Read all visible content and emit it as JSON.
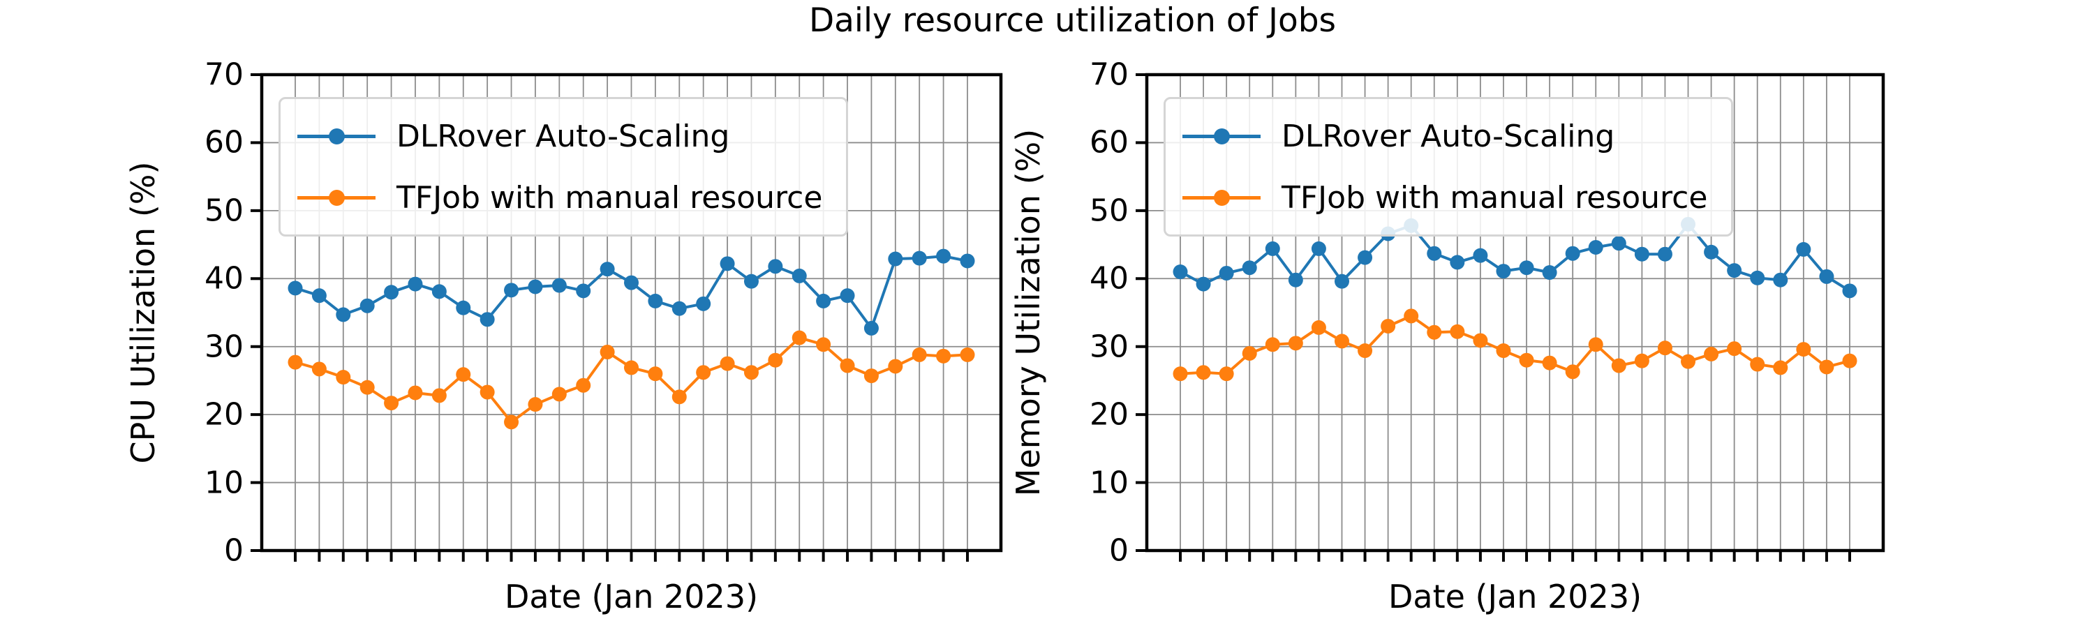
{
  "figure_title": "Daily resource utilization of Jobs",
  "colors": {
    "auto_scaling": "#1f77b4",
    "manual": "#ff7f0e",
    "grid": "#8c8c8c",
    "spine": "#000000",
    "legend_border": "#d5d5d5"
  },
  "chart_data": [
    {
      "id": "cpu",
      "type": "line",
      "title": "",
      "xlabel": "Date (Jan 2023)",
      "ylabel": "CPU Utilization (%)",
      "ylim": [
        0,
        70
      ],
      "y_ticks": [
        "0",
        "10",
        "20",
        "30",
        "40",
        "50",
        "60",
        "70"
      ],
      "grid": "on",
      "legend_position": "upper left",
      "x_unit": "day",
      "x": [
        1,
        2,
        3,
        4,
        5,
        6,
        7,
        8,
        9,
        10,
        11,
        12,
        13,
        14,
        15,
        16,
        17,
        18,
        19,
        20,
        21,
        22,
        23,
        24,
        25,
        26,
        27,
        28,
        29
      ],
      "series": [
        {
          "name": "DLRover Auto-Scaling",
          "color": "#1f77b4",
          "values": [
            38.6,
            37.5,
            34.7,
            36.0,
            38.0,
            39.2,
            38.1,
            35.7,
            34.0,
            38.3,
            38.8,
            39.0,
            38.2,
            41.4,
            39.4,
            36.7,
            35.6,
            36.3,
            42.2,
            39.6,
            41.8,
            40.4,
            36.7,
            37.5,
            32.7,
            42.9,
            43.0,
            43.3,
            42.6
          ]
        },
        {
          "name": "TFJob with manual resource",
          "color": "#ff7f0e",
          "values": [
            27.7,
            26.7,
            25.5,
            24.0,
            21.7,
            23.2,
            22.8,
            25.9,
            23.3,
            18.9,
            21.5,
            23.0,
            24.3,
            29.2,
            26.9,
            26.0,
            22.6,
            26.2,
            27.5,
            26.2,
            28.0,
            31.3,
            30.3,
            27.2,
            25.7,
            27.1,
            28.8,
            28.6,
            28.8
          ]
        }
      ]
    },
    {
      "id": "memory",
      "type": "line",
      "title": "",
      "xlabel": "Date (Jan 2023)",
      "ylabel": "Memory Utilization (%)",
      "ylim": [
        0,
        70
      ],
      "y_ticks": [
        "0",
        "10",
        "20",
        "30",
        "40",
        "50",
        "60",
        "70"
      ],
      "grid": "on",
      "legend_position": "upper left",
      "x_unit": "day",
      "x": [
        1,
        2,
        3,
        4,
        5,
        6,
        7,
        8,
        9,
        10,
        11,
        12,
        13,
        14,
        15,
        16,
        17,
        18,
        19,
        20,
        21,
        22,
        23,
        24,
        25,
        26,
        27,
        28,
        29,
        30
      ],
      "series": [
        {
          "name": "DLRover Auto-Scaling",
          "color": "#1f77b4",
          "values": [
            41.0,
            39.2,
            40.8,
            41.6,
            44.4,
            39.8,
            44.4,
            39.6,
            43.1,
            46.6,
            47.8,
            43.7,
            42.4,
            43.4,
            41.1,
            41.6,
            40.9,
            43.7,
            44.6,
            45.2,
            43.6,
            43.6,
            48.0,
            43.9,
            41.2,
            40.1,
            39.8,
            44.3,
            40.3,
            38.2
          ]
        },
        {
          "name": "TFJob with manual resource",
          "color": "#ff7f0e",
          "values": [
            26.0,
            26.2,
            26.0,
            29.0,
            30.3,
            30.5,
            32.8,
            30.8,
            29.4,
            33.0,
            34.5,
            32.1,
            32.2,
            30.9,
            29.4,
            28.0,
            27.6,
            26.3,
            30.3,
            27.2,
            27.9,
            29.8,
            27.8,
            28.9,
            29.7,
            27.4,
            26.9,
            29.6,
            27.0,
            27.9
          ]
        }
      ]
    }
  ]
}
